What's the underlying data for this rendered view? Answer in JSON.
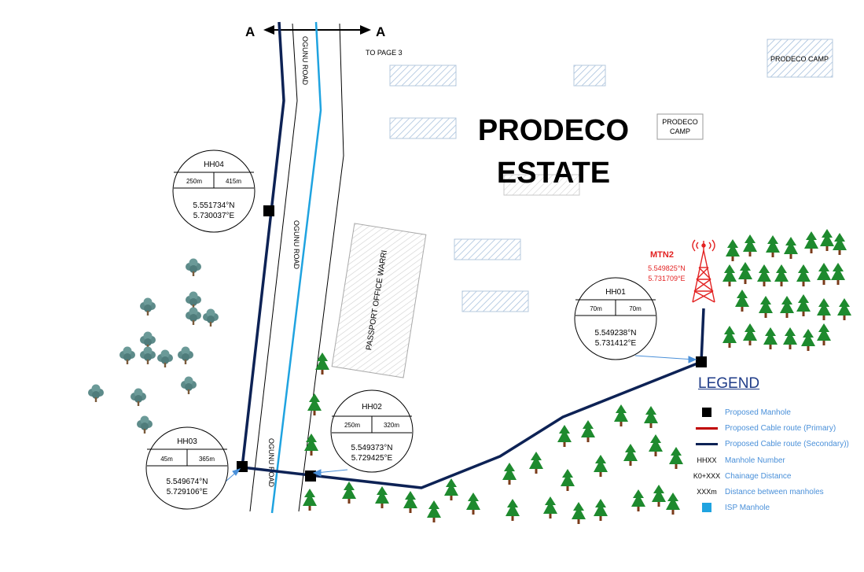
{
  "section_marker": {
    "left": "A",
    "right": "A",
    "page_ref": "TO PAGE 3"
  },
  "roads": {
    "label": "OGUNU ROAD"
  },
  "estate": {
    "line1": "PRODECO",
    "line2": "ESTATE"
  },
  "buildings": {
    "prodeco_camp_top": "PRODECO CAMP",
    "prodeco_camp_small_1": "PRODECO",
    "prodeco_camp_small_2": "CAMP",
    "passport_office": "PASSPORT OFFICE WARRI"
  },
  "mast": {
    "name": "MTN2",
    "lat": "5.549825°N",
    "lon": "5.731709°E"
  },
  "manholes": {
    "hh04": {
      "id": "HH04",
      "left": "250m",
      "right": "415m",
      "lat": "5.551734°N",
      "lon": "5.730037°E"
    },
    "hh01": {
      "id": "HH01",
      "left": "70m",
      "right": "70m",
      "lat": "5.549238°N",
      "lon": "5.731412°E"
    },
    "hh02": {
      "id": "HH02",
      "left": "250m",
      "right": "320m",
      "lat": "5.549373°N",
      "lon": "5.729425°E"
    },
    "hh03": {
      "id": "HH03",
      "left": "45m",
      "right": "365m",
      "lat": "5.549674°N",
      "lon": "5.729106°E"
    }
  },
  "legend": {
    "title": "LEGEND",
    "items": [
      {
        "symbol": "",
        "label": "Proposed Manhole"
      },
      {
        "symbol": "",
        "label": "Proposed Cable route (Primary)"
      },
      {
        "symbol": "",
        "label": "Proposed Cable route (Secondary))"
      },
      {
        "symbol": "HHXX",
        "label": "Manhole Number"
      },
      {
        "symbol": "K0+XXX",
        "label": "Chainage Distance"
      },
      {
        "symbol": "XXXm",
        "label": "Distance between manholes"
      },
      {
        "symbol": "",
        "label": "ISP Manhole"
      }
    ]
  },
  "colors": {
    "secondary_route": "#0d2255",
    "primary_route": "#c00000",
    "isp_route": "#1fa3e0",
    "mast": "#e32222",
    "legend_text": "#4a90d9",
    "hatch": "#9cb9d8"
  }
}
